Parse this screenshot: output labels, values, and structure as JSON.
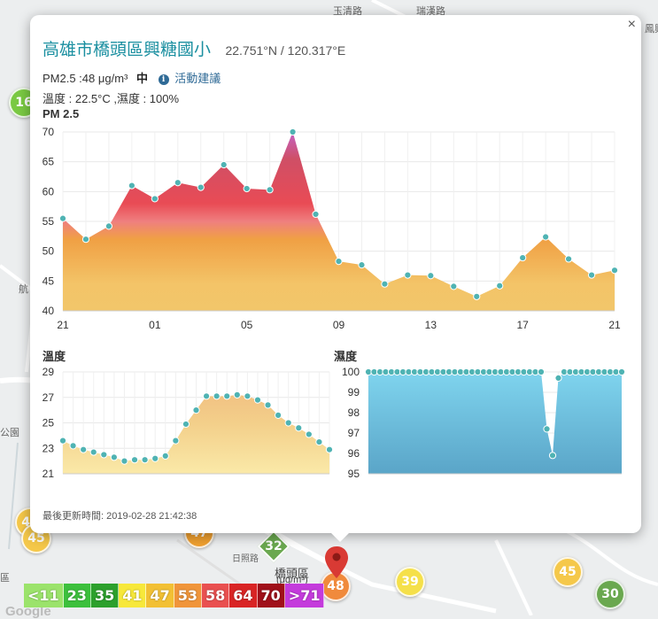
{
  "popup": {
    "title": "高雄市橋頭區興糖國小",
    "coords": "22.751°N / 120.317°E",
    "pm_text": "PM2.5 :48 μg/m³",
    "level": "中",
    "advice_icon": "i",
    "advice": "活動建議",
    "weather": "溫度 : 22.5°C ,濕度 : 100%",
    "close": "×",
    "updated": "最後更新時間: 2019-02-28 21:42:38"
  },
  "chart_data": [
    {
      "type": "area",
      "title": "PM 2.5",
      "x": [
        "21",
        "22",
        "23",
        "00",
        "01",
        "02",
        "03",
        "04",
        "05",
        "06",
        "07",
        "08",
        "09",
        "10",
        "11",
        "12",
        "13",
        "14",
        "15",
        "16",
        "17",
        "18",
        "19",
        "20",
        "21"
      ],
      "xticks": [
        "21",
        "01",
        "05",
        "09",
        "13",
        "17",
        "21"
      ],
      "yticks": [
        40,
        45,
        50,
        55,
        60,
        65,
        70
      ],
      "ylim": [
        40,
        70
      ],
      "values": [
        55.5,
        52,
        54.2,
        61,
        58.8,
        61.5,
        60.7,
        64.5,
        60.5,
        60.3,
        70,
        56.2,
        48.3,
        47.7,
        44.5,
        46,
        45.9,
        44.1,
        42.4,
        44.2,
        48.9,
        52.4,
        48.7,
        46,
        46.8
      ],
      "grid": true
    },
    {
      "type": "area",
      "title": "溫度",
      "yticks": [
        21,
        23,
        25,
        27,
        29
      ],
      "ylim": [
        21,
        29
      ],
      "values": [
        23.6,
        23.2,
        22.9,
        22.7,
        22.5,
        22.3,
        22,
        22.1,
        22.1,
        22.2,
        22.4,
        23.6,
        24.9,
        26,
        27.1,
        27.1,
        27.1,
        27.2,
        27.1,
        26.8,
        26.4,
        25.6,
        25,
        24.6,
        24.1,
        23.5,
        22.9
      ],
      "grid": true
    },
    {
      "type": "area",
      "title": "濕度",
      "yticks": [
        95,
        96,
        97,
        98,
        99,
        100
      ],
      "ylim": [
        95,
        100
      ],
      "values": [
        100,
        100,
        100,
        100,
        100,
        100,
        100,
        100,
        100,
        100,
        100,
        100,
        100,
        100,
        100,
        100,
        100,
        100,
        100,
        100,
        100,
        100,
        100,
        100,
        100,
        100,
        100,
        100,
        100,
        100,
        100,
        97.2,
        95.9,
        99.7,
        100,
        100,
        100,
        100,
        100,
        100,
        100,
        100,
        100,
        100,
        100
      ],
      "grid": true
    }
  ],
  "map": {
    "markers": [
      {
        "value": "16",
        "color": "#7ac943"
      },
      {
        "value": "40",
        "color": "#f5c84a"
      },
      {
        "value": "45",
        "color": "#f5c84a"
      },
      {
        "value": "47",
        "color": "#f0a030"
      },
      {
        "value": "48",
        "color": "#f08a3c"
      },
      {
        "value": "39",
        "color": "#f5e04a"
      },
      {
        "value": "45",
        "color": "#f5c84a"
      },
      {
        "value": "30",
        "color": "#6aa84f"
      }
    ],
    "diamond": "32",
    "labels": [
      "玉清路",
      "瑞漢路",
      "鳳興路",
      "公園",
      "航",
      "區",
      "橋頭區",
      "(μg/m³)",
      "日照路",
      "Google"
    ]
  },
  "legend": [
    {
      "label": "<11",
      "color": "#9be36b"
    },
    {
      "label": "23",
      "color": "#3cc03c"
    },
    {
      "label": "35",
      "color": "#2ca02c"
    },
    {
      "label": "41",
      "color": "#f7e83a"
    },
    {
      "label": "47",
      "color": "#f2c034"
    },
    {
      "label": "53",
      "color": "#f0953a"
    },
    {
      "label": "58",
      "color": "#e95050"
    },
    {
      "label": "64",
      "color": "#d92424"
    },
    {
      "label": "70",
      "color": "#a0101a"
    },
    {
      "label": ">71",
      "color": "#c43bdc"
    }
  ]
}
